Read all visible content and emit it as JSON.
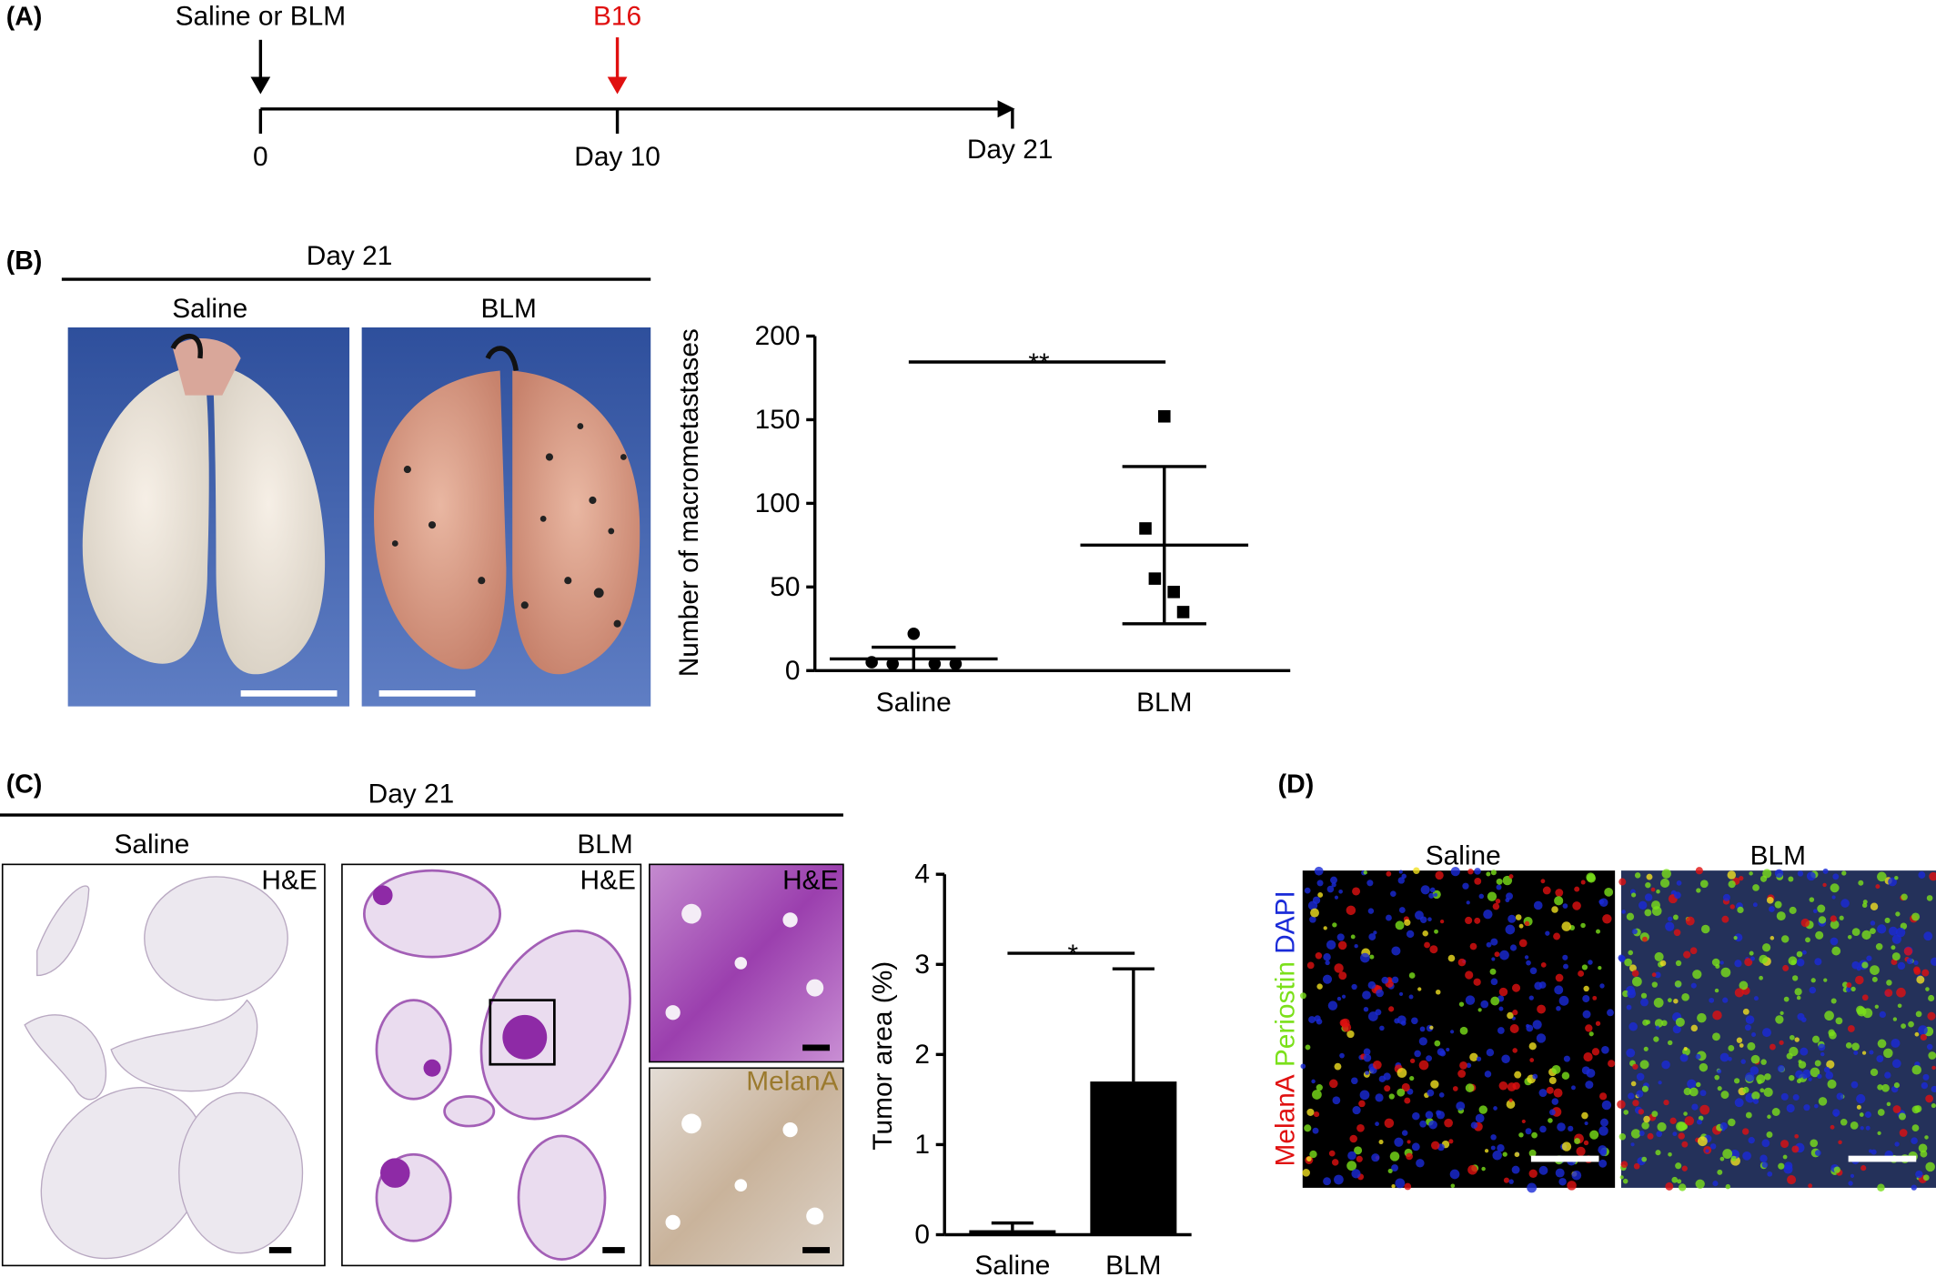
{
  "panel_labels": [
    "(A)",
    "(B)",
    "(C)",
    "(D)"
  ],
  "timeline": {
    "start_label": "Saline or BLM",
    "injection_label": "B16",
    "points": [
      "0",
      "Day 10",
      "Day 21"
    ]
  },
  "panel_b": {
    "header": "Day 21",
    "photo_labels": [
      "Saline",
      "BLM"
    ]
  },
  "panel_c": {
    "header": "Day 21",
    "group_labels": [
      "Saline",
      "BLM"
    ],
    "stain_labels": [
      "H&E",
      "H&E",
      "H&E",
      "MelanA"
    ]
  },
  "panel_d": {
    "group_labels": [
      "Saline",
      "BLM"
    ],
    "channel_labels": [
      {
        "text": "MelanA",
        "color": "#e01010"
      },
      {
        "text": "Periostin",
        "color": "#7be01a"
      },
      {
        "text": "DAPI",
        "color": "#1a2bd8"
      }
    ]
  },
  "chart_data": [
    {
      "type": "dotplot",
      "ylabel": "Number of macrometastases",
      "categories": [
        "Saline",
        "BLM"
      ],
      "points": [
        [
          22,
          5,
          4,
          4,
          4
        ],
        [
          152,
          85,
          55,
          47,
          35
        ]
      ],
      "markers": [
        "circle",
        "square"
      ],
      "means": [
        7,
        75
      ],
      "errors": [
        7,
        47
      ],
      "color": "#000000",
      "ylim": [
        0,
        200
      ],
      "yticks": [
        0,
        50,
        100,
        150,
        200
      ],
      "annotation": "**"
    },
    {
      "type": "bar",
      "ylabel": "Tumor area (%)",
      "categories": [
        "Saline",
        "BLM"
      ],
      "values": [
        0.05,
        1.7
      ],
      "errors": [
        0.08,
        1.25
      ],
      "color": "#000000",
      "ylim": [
        0,
        4
      ],
      "yticks": [
        0,
        1,
        2,
        3,
        4
      ],
      "annotation": "*"
    }
  ]
}
